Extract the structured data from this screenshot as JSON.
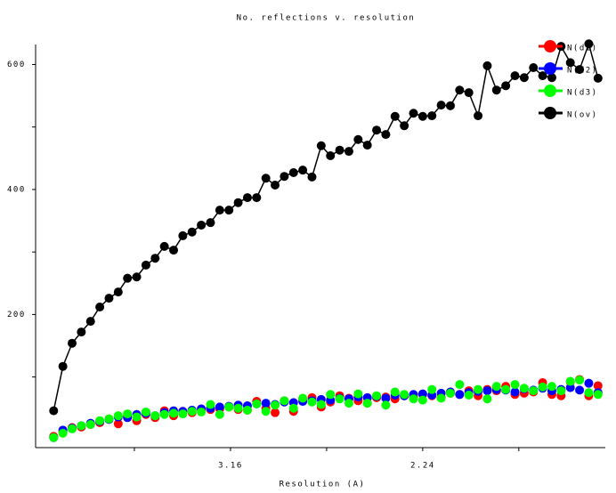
{
  "chart_data": {
    "type": "line",
    "title": "No. reflections v. resolution",
    "x_label": "Resolution (A)",
    "x": [
      0.008,
      0.0128,
      0.0176,
      0.0224,
      0.0272,
      0.032,
      0.0368,
      0.0416,
      0.0464,
      0.0512,
      0.056,
      0.0608,
      0.0656,
      0.0704,
      0.0752,
      0.08,
      0.0848,
      0.0896,
      0.0944,
      0.0992,
      0.104,
      0.1088,
      0.1136,
      0.1184,
      0.1232,
      0.128,
      0.1328,
      0.1376,
      0.1424,
      0.1472,
      0.152,
      0.1568,
      0.1616,
      0.1664,
      0.1712,
      0.176,
      0.1808,
      0.1856,
      0.1904,
      0.1952,
      0.2,
      0.2048,
      0.2096,
      0.2144,
      0.2192,
      0.224,
      0.2288,
      0.2336,
      0.2384,
      0.2432,
      0.248,
      0.2528,
      0.2576,
      0.2624,
      0.2672,
      0.272,
      0.2768,
      0.2816,
      0.2864,
      0.2912
    ],
    "series": [
      {
        "name": "N(d1)",
        "color": "#ff0000",
        "values": [
          5,
          12,
          19,
          20,
          24,
          27,
          33,
          25,
          38,
          30,
          40,
          35,
          46,
          38,
          45,
          43,
          47,
          48,
          49,
          52,
          48,
          47,
          61,
          50,
          43,
          62,
          45,
          64,
          67,
          52,
          60,
          70,
          66,
          62,
          58,
          67,
          68,
          65,
          70,
          68,
          72,
          70,
          67,
          74,
          72,
          78,
          70,
          80,
          78,
          85,
          72,
          74,
          76,
          91,
          72,
          70,
          92,
          96,
          70,
          86
        ]
      },
      {
        "name": "N(d2)",
        "color": "#0000ff",
        "values": [
          3,
          15,
          18,
          22,
          26,
          29,
          32,
          36,
          35,
          40,
          42,
          38,
          43,
          46,
          45,
          47,
          49,
          50,
          52,
          53,
          55,
          54,
          57,
          58,
          56,
          60,
          59,
          61,
          62,
          64,
          63,
          66,
          65,
          68,
          67,
          69,
          66,
          71,
          70,
          72,
          73,
          71,
          74,
          76,
          72,
          75,
          77,
          78,
          80,
          79,
          76,
          81,
          79,
          82,
          78,
          80,
          83,
          79,
          90,
          75
        ]
      },
      {
        "name": "N(d3)",
        "color": "#00ff00",
        "values": [
          3,
          10,
          17,
          22,
          24,
          30,
          33,
          38,
          41,
          36,
          44,
          38,
          40,
          42,
          41,
          45,
          44,
          56,
          40,
          52,
          50,
          47,
          57,
          45,
          55,
          62,
          50,
          66,
          60,
          56,
          72,
          65,
          58,
          73,
          58,
          70,
          55,
          76,
          72,
          65,
          63,
          80,
          66,
          74,
          88,
          71,
          80,
          65,
          85,
          80,
          88,
          82,
          78,
          84,
          85,
          78,
          93,
          95,
          75,
          72
        ]
      },
      {
        "name": "N(ov)",
        "color": "#000000",
        "values": [
          46,
          117,
          154,
          172,
          189,
          212,
          226,
          236,
          258,
          260,
          279,
          290,
          309,
          303,
          326,
          332,
          343,
          347,
          367,
          367,
          379,
          387,
          387,
          418,
          407,
          421,
          427,
          431,
          420,
          470,
          454,
          463,
          461,
          480,
          471,
          495,
          488,
          517,
          502,
          522,
          517,
          518,
          535,
          534,
          559,
          555,
          518,
          598,
          559,
          566,
          582,
          579,
          595,
          582,
          579,
          629,
          603,
          592,
          633,
          578
        ]
      }
    ],
    "xlim": [
      0,
      0.295
    ],
    "xticks": [
      {
        "value": 0.05,
        "label": null
      },
      {
        "value": 0.1,
        "label": "3.16"
      },
      {
        "value": 0.15,
        "label": null
      },
      {
        "value": 0.2,
        "label": "2.24"
      },
      {
        "value": 0.25,
        "label": null
      }
    ],
    "ylim": [
      -13,
      632
    ],
    "yticks": [
      {
        "value": 100,
        "label": null
      },
      200,
      {
        "value": 300,
        "label": null
      },
      400,
      {
        "value": 500,
        "label": null
      },
      600
    ],
    "legend": "top-right"
  }
}
